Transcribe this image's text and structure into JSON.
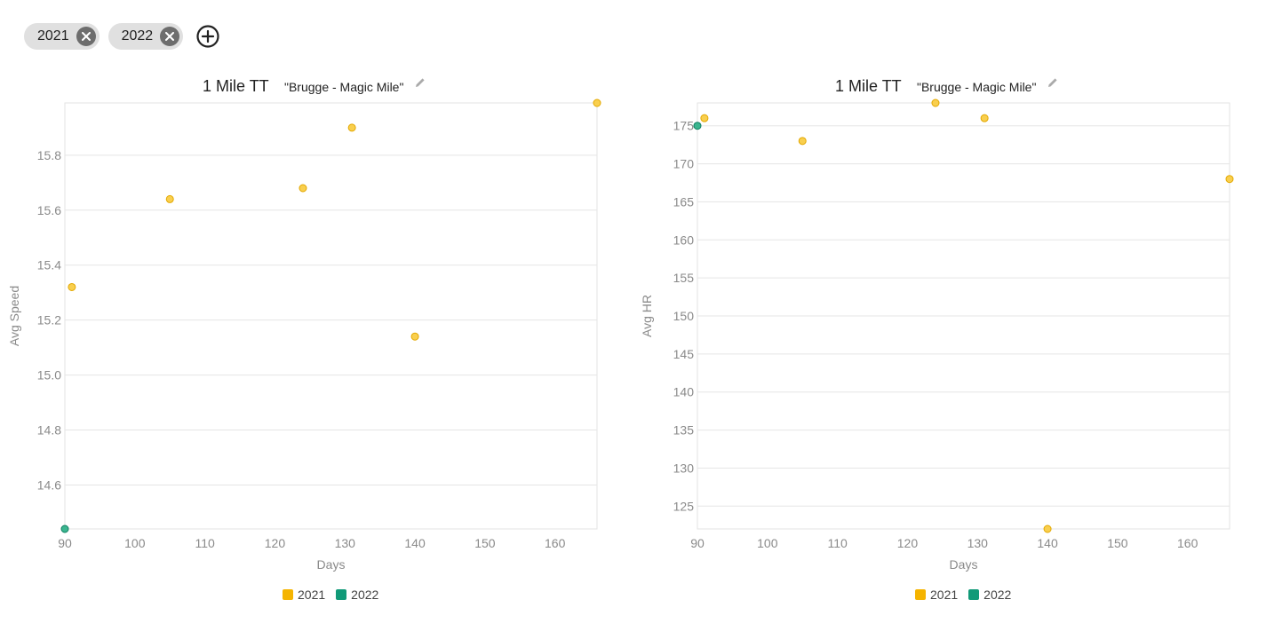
{
  "filters": {
    "chips": [
      {
        "label": "2021"
      },
      {
        "label": "2022"
      }
    ]
  },
  "colors": {
    "series_2021": "#F5B400",
    "series_2022": "#119A78",
    "chip_bg": "#e0e0e0",
    "grid": "#e5e5e5"
  },
  "chart_data": [
    {
      "type": "scatter",
      "title": "1 Mile TT",
      "subtitle": "\"Brugge - Magic Mile\"",
      "xlabel": "Days",
      "ylabel": "Avg Speed",
      "xlim": [
        90,
        166
      ],
      "ylim": [
        14.44,
        15.99
      ],
      "xticks": [
        90,
        100,
        110,
        120,
        130,
        140,
        150,
        160
      ],
      "yticks": [
        14.6,
        14.8,
        15.0,
        15.2,
        15.4,
        15.6,
        15.8
      ],
      "ytick_labels": [
        "14.6",
        "14.8",
        "15.0",
        "15.2",
        "15.4",
        "15.6",
        "15.8"
      ],
      "legend_position": "bottom",
      "grid": true,
      "series": [
        {
          "name": "2021",
          "points": [
            [
              91,
              15.32
            ],
            [
              105,
              15.64
            ],
            [
              124,
              15.68
            ],
            [
              131,
              15.9
            ],
            [
              140,
              15.14
            ],
            [
              166,
              15.99
            ]
          ]
        },
        {
          "name": "2022",
          "points": [
            [
              90,
              14.44
            ]
          ]
        }
      ]
    },
    {
      "type": "scatter",
      "title": "1 Mile TT",
      "subtitle": "\"Brugge - Magic Mile\"",
      "xlabel": "Days",
      "ylabel": "Avg HR",
      "xlim": [
        90,
        166
      ],
      "ylim": [
        122,
        178
      ],
      "xticks": [
        90,
        100,
        110,
        120,
        130,
        140,
        150,
        160
      ],
      "yticks": [
        125,
        130,
        135,
        140,
        145,
        150,
        155,
        160,
        165,
        170,
        175
      ],
      "ytick_labels": [
        "125",
        "130",
        "135",
        "140",
        "145",
        "150",
        "155",
        "160",
        "165",
        "170",
        "175"
      ],
      "legend_position": "bottom",
      "grid": true,
      "series": [
        {
          "name": "2021",
          "points": [
            [
              91,
              176
            ],
            [
              105,
              173
            ],
            [
              124,
              178
            ],
            [
              131,
              176
            ],
            [
              140,
              122
            ],
            [
              166,
              168
            ]
          ]
        },
        {
          "name": "2022",
          "points": [
            [
              90,
              175
            ]
          ]
        }
      ]
    }
  ]
}
